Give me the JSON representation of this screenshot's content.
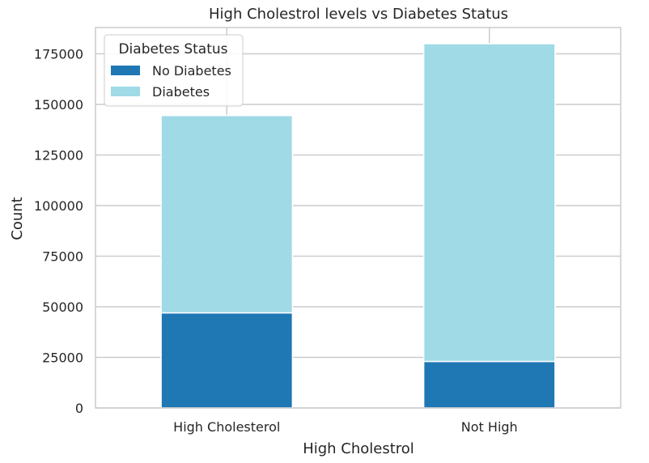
{
  "chart_data": {
    "type": "bar",
    "stacked": true,
    "title": "High Cholestrol levels vs Diabetes Status",
    "xlabel": "High Cholestrol",
    "ylabel": "Count",
    "categories": [
      "High Cholesterol",
      "Not High"
    ],
    "series": [
      {
        "name": "No Diabetes",
        "values": [
          47000,
          23000
        ],
        "color": "#1f77b4"
      },
      {
        "name": "Diabetes",
        "values": [
          97500,
          157000
        ],
        "color": "#9fdae6"
      }
    ],
    "ylim": [
      0,
      188000
    ],
    "yticks": [
      0,
      25000,
      50000,
      75000,
      100000,
      125000,
      150000,
      175000
    ],
    "grid": true,
    "legend": {
      "title": "Diabetes Status",
      "placement": "top-left"
    }
  }
}
